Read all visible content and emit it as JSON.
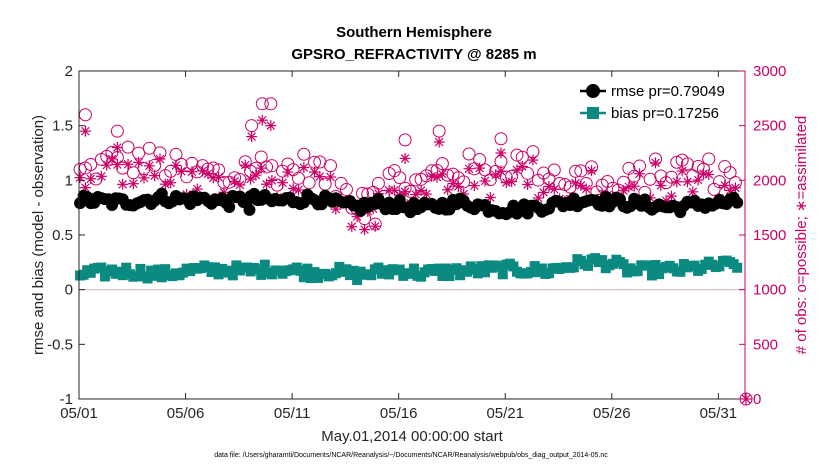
{
  "chart_data": {
    "type": "scatter",
    "title": "Southern Hemisphere",
    "subtitle": "GPSRO_REFRACTIVITY @ 8285 m",
    "xlabel": "May.01,2014 00:00:00 start",
    "ylabel": "rmse and bias (model - observation)",
    "y2label": "# of obs: o=possible; ∗=assimilated",
    "xlim": [
      0,
      31.25
    ],
    "ylim": [
      -1,
      2
    ],
    "y2lim": [
      0,
      3000
    ],
    "x_ticks": [
      {
        "v": 0,
        "label": "05/01"
      },
      {
        "v": 5,
        "label": "05/06"
      },
      {
        "v": 10,
        "label": "05/11"
      },
      {
        "v": 15,
        "label": "05/16"
      },
      {
        "v": 20,
        "label": "05/21"
      },
      {
        "v": 25,
        "label": "05/26"
      },
      {
        "v": 30,
        "label": "05/31"
      }
    ],
    "y_ticks": [
      {
        "v": -1,
        "label": "-1"
      },
      {
        "v": -0.5,
        "label": "-0.5"
      },
      {
        "v": 0,
        "label": "0"
      },
      {
        "v": 0.5,
        "label": "0.5"
      },
      {
        "v": 1,
        "label": "1"
      },
      {
        "v": 1.5,
        "label": "1.5"
      },
      {
        "v": 2,
        "label": "2"
      }
    ],
    "y2_ticks": [
      {
        "v": 0,
        "label": "0"
      },
      {
        "v": 500,
        "label": "500"
      },
      {
        "v": 1000,
        "label": "1000"
      },
      {
        "v": 1500,
        "label": "1500"
      },
      {
        "v": 2000,
        "label": "2000"
      },
      {
        "v": 2500,
        "label": "2500"
      },
      {
        "v": 3000,
        "label": "3000"
      }
    ],
    "zero_line": 0,
    "legend_position": "top-right",
    "rmse_profile": [
      [
        0,
        0.82
      ],
      [
        2,
        0.8
      ],
      [
        4,
        0.84
      ],
      [
        5,
        0.82
      ],
      [
        6,
        0.83
      ],
      [
        7,
        0.8
      ],
      [
        8,
        0.84
      ],
      [
        9,
        0.81
      ],
      [
        10,
        0.82
      ],
      [
        11,
        0.84
      ],
      [
        12,
        0.79
      ],
      [
        13,
        0.75
      ],
      [
        14,
        0.79
      ],
      [
        15,
        0.77
      ],
      [
        16,
        0.74
      ],
      [
        17,
        0.77
      ],
      [
        18,
        0.8
      ],
      [
        19,
        0.76
      ],
      [
        20,
        0.73
      ],
      [
        21,
        0.74
      ],
      [
        22,
        0.77
      ],
      [
        23,
        0.8
      ],
      [
        24,
        0.83
      ],
      [
        25,
        0.8
      ],
      [
        26,
        0.79
      ],
      [
        27,
        0.77
      ],
      [
        28,
        0.75
      ],
      [
        29,
        0.78
      ],
      [
        30,
        0.79
      ],
      [
        31.25,
        0.8
      ]
    ],
    "bias_profile": [
      [
        0,
        0.14
      ],
      [
        2,
        0.17
      ],
      [
        4,
        0.14
      ],
      [
        5,
        0.17
      ],
      [
        6,
        0.18
      ],
      [
        7,
        0.18
      ],
      [
        8,
        0.17
      ],
      [
        9,
        0.19
      ],
      [
        10,
        0.18
      ],
      [
        11,
        0.15
      ],
      [
        12,
        0.17
      ],
      [
        13,
        0.13
      ],
      [
        14,
        0.16
      ],
      [
        15,
        0.18
      ],
      [
        16,
        0.15
      ],
      [
        17,
        0.16
      ],
      [
        18,
        0.17
      ],
      [
        19,
        0.18
      ],
      [
        20,
        0.19
      ],
      [
        21,
        0.18
      ],
      [
        22,
        0.17
      ],
      [
        23,
        0.22
      ],
      [
        24,
        0.26
      ],
      [
        25,
        0.24
      ],
      [
        26,
        0.17
      ],
      [
        27,
        0.18
      ],
      [
        28,
        0.18
      ],
      [
        29,
        0.2
      ],
      [
        30,
        0.22
      ],
      [
        31.25,
        0.24
      ]
    ],
    "possible_profile": [
      [
        0,
        2050
      ],
      [
        2,
        2200
      ],
      [
        4,
        2150
      ],
      [
        5,
        2050
      ],
      [
        6,
        2080
      ],
      [
        7,
        2000
      ],
      [
        8,
        2150
      ],
      [
        9,
        2100
      ],
      [
        10,
        2100
      ],
      [
        11,
        2130
      ],
      [
        12,
        1950
      ],
      [
        13,
        1850
      ],
      [
        14,
        2000
      ],
      [
        15,
        2000
      ],
      [
        16,
        1950
      ],
      [
        17,
        2100
      ],
      [
        18,
        2100
      ],
      [
        19,
        2100
      ],
      [
        20,
        2150
      ],
      [
        21,
        2150
      ],
      [
        22,
        2100
      ],
      [
        23,
        2000
      ],
      [
        24,
        2050
      ],
      [
        25,
        1900
      ],
      [
        26,
        2000
      ],
      [
        27,
        2050
      ],
      [
        28,
        2100
      ],
      [
        29,
        2100
      ],
      [
        30,
        2050
      ],
      [
        31.25,
        2080
      ]
    ],
    "series": [
      {
        "name": "rmse pr=0.79049",
        "color": "#000000",
        "marker": "circle",
        "count": 186
      },
      {
        "name": "bias pr=0.17256",
        "color": "#0a8a80",
        "marker": "square",
        "count": 186
      },
      {
        "name": "possible",
        "color": "#cc0066",
        "marker": "open-circle",
        "count": 124
      },
      {
        "name": "assimilated",
        "color": "#cc0066",
        "marker": "asterisk",
        "count": 124
      }
    ],
    "spikes": [
      {
        "x": 0.3,
        "possible": 2600,
        "assimilated": 2450
      },
      {
        "x": 1.8,
        "possible": 2450,
        "assimilated": 2300
      },
      {
        "x": 8.1,
        "possible": 2500,
        "assimilated": 2400
      },
      {
        "x": 8.6,
        "possible": 2700,
        "assimilated": 2550
      },
      {
        "x": 9.0,
        "possible": 2700,
        "assimilated": 2500
      },
      {
        "x": 15.3,
        "possible": 2370,
        "assimilated": 2200
      },
      {
        "x": 16.9,
        "possible": 2450,
        "assimilated": 2350
      },
      {
        "x": 19.8,
        "possible": 2380,
        "assimilated": 2250
      },
      {
        "x": 13.4,
        "possible": 1650,
        "assimilated": 1550
      },
      {
        "x": 13.9,
        "possible": 1600,
        "assimilated": 1580
      },
      {
        "x": 8.0,
        "rmse": 0.73
      }
    ],
    "end_marker": {
      "x": 31.3,
      "possible": 0,
      "assimilated": 0
    },
    "footnote": "data file: /Users/gharamti/Documents/NCAR/Reanalysis/~/Documents/NCAR/Reanalysis/webpub/obs_diag_output_2014-05.nc",
    "colors": {
      "left_axis": "#262626",
      "right_axis": "#cc0066",
      "rmse": "#000000",
      "bias": "#0a8a80",
      "obs": "#cc0066",
      "zero_line": "#d9b3c3"
    }
  }
}
